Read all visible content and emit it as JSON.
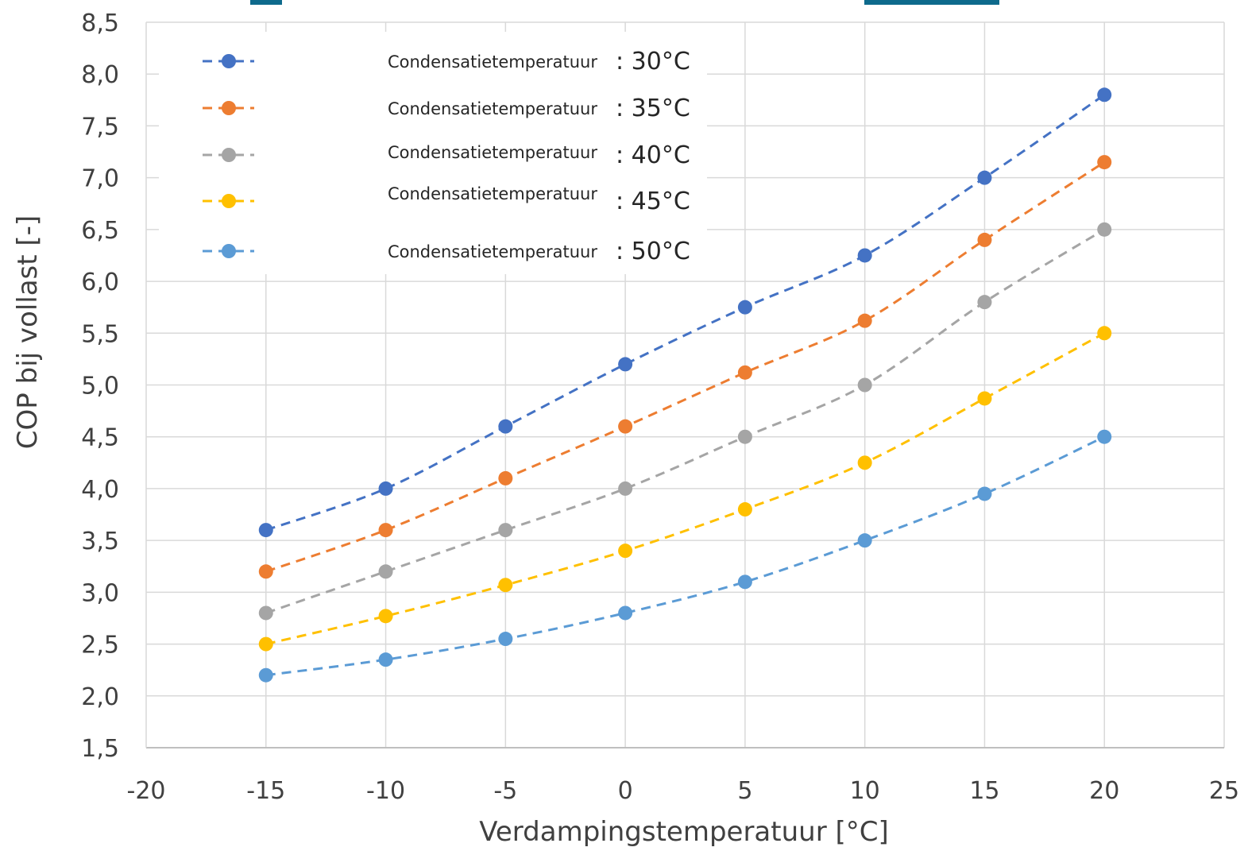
{
  "chart_data": {
    "type": "line",
    "xlabel": "Verdampingstemperatuur [°C]",
    "ylabel": "COP bij vollast [-]",
    "xlim": [
      -20,
      25
    ],
    "ylim": [
      1.5,
      8.5
    ],
    "x_ticks": [
      "-20",
      "-15",
      "-10",
      "-5",
      "0",
      "5",
      "10",
      "15",
      "20",
      "25"
    ],
    "y_ticks": [
      "1,5",
      "2,0",
      "2,5",
      "3,0",
      "3,5",
      "4,0",
      "4,5",
      "5,0",
      "5,5",
      "6,0",
      "6,5",
      "7,0",
      "7,5",
      "8,0",
      "8,5"
    ],
    "grid": true,
    "legend_position": "top-left",
    "x": [
      -15,
      -10,
      -5,
      0,
      5,
      10,
      15,
      20
    ],
    "series": [
      {
        "name": "Condensatietemperatuur",
        "suffix": ": 30°C",
        "color": "#4472c4",
        "values": [
          3.6,
          4.0,
          4.6,
          5.2,
          5.75,
          6.25,
          7.0,
          7.8
        ]
      },
      {
        "name": "Condensatietemperatuur",
        "suffix": ": 35°C",
        "color": "#ed7d31",
        "values": [
          3.2,
          3.6,
          4.1,
          4.6,
          5.12,
          5.62,
          6.4,
          7.15
        ]
      },
      {
        "name": "Condensatietemperatuur",
        "suffix": ": 40°C",
        "color": "#a5a5a5",
        "values": [
          2.8,
          3.2,
          3.6,
          4.0,
          4.5,
          5.0,
          5.8,
          6.5
        ]
      },
      {
        "name": "Condensatietemperatuur",
        "suffix": ": 45°C",
        "color": "#ffc000",
        "values": [
          2.5,
          2.77,
          3.07,
          3.4,
          3.8,
          4.25,
          4.87,
          5.5
        ]
      },
      {
        "name": "Condensatietemperatuur",
        "suffix": ": 50°C",
        "color": "#5b9bd5",
        "values": [
          2.2,
          2.35,
          2.55,
          2.8,
          3.1,
          3.5,
          3.95,
          4.5
        ]
      }
    ]
  }
}
